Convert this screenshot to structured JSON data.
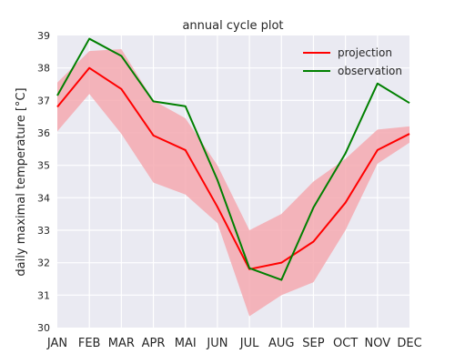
{
  "chart_data": {
    "type": "line",
    "title": "annual cycle plot",
    "xlabel": "",
    "ylabel": "daily maximal temperature [°C]",
    "categories": [
      "JAN",
      "FEB",
      "MAR",
      "APR",
      "MAI",
      "JUN",
      "JUL",
      "AUG",
      "SEP",
      "OCT",
      "NOV",
      "DEC"
    ],
    "ylim": [
      30,
      39
    ],
    "yticks": [
      30,
      31,
      32,
      33,
      34,
      35,
      36,
      37,
      38,
      39
    ],
    "grid": true,
    "legend_position": "top-right",
    "series": [
      {
        "name": "projection",
        "color": "#ff0000",
        "values": [
          36.8,
          38.0,
          37.35,
          35.92,
          35.47,
          33.72,
          31.8,
          32.0,
          32.65,
          33.85,
          35.47,
          35.97
        ]
      },
      {
        "name": "observation",
        "color": "#008000",
        "values": [
          37.15,
          38.9,
          38.37,
          36.97,
          36.82,
          34.55,
          31.83,
          31.47,
          33.7,
          35.37,
          37.52,
          36.92
        ]
      }
    ],
    "band": {
      "series": "projection",
      "color": "#f4a9b0",
      "lower": [
        36.05,
        37.2,
        35.97,
        34.47,
        34.1,
        33.22,
        30.35,
        31.0,
        31.4,
        33.0,
        35.05,
        35.7
      ],
      "upper": [
        37.55,
        38.52,
        38.58,
        37.0,
        36.45,
        35.0,
        33.0,
        33.5,
        34.5,
        35.2,
        36.1,
        36.2
      ]
    }
  }
}
